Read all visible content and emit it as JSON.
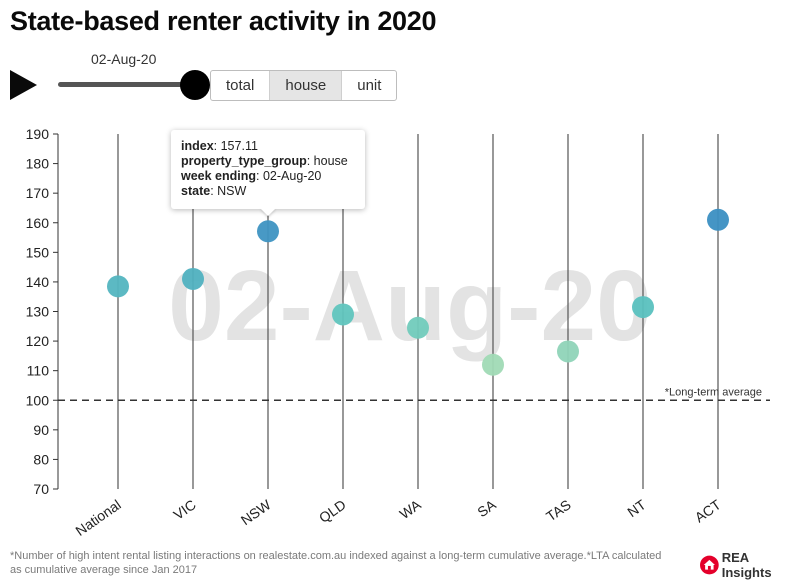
{
  "title": "State-based renter activity in 2020",
  "slider": {
    "current_label": "02-Aug-20",
    "progress": 1.0
  },
  "property_toggle": {
    "options": [
      "total",
      "house",
      "unit"
    ],
    "selected": "house"
  },
  "tooltip": {
    "rows": [
      {
        "key": "index",
        "value": "157.11"
      },
      {
        "key": "property_type_group",
        "value": "house"
      },
      {
        "key": "week ending",
        "value": "02-Aug-20"
      },
      {
        "key": "state",
        "value": "NSW"
      }
    ]
  },
  "chart_data": {
    "type": "scatter",
    "watermark": "02-Aug-20",
    "categories": [
      "National",
      "VIC",
      "NSW",
      "QLD",
      "WA",
      "SA",
      "TAS",
      "NT",
      "ACT"
    ],
    "values": [
      138.5,
      141.0,
      157.11,
      129.0,
      124.5,
      112.0,
      116.5,
      131.5,
      161.0
    ],
    "ylim": [
      70,
      190
    ],
    "yticks": [
      70,
      80,
      90,
      100,
      110,
      120,
      130,
      140,
      150,
      160,
      170,
      180,
      190
    ],
    "reference_line": {
      "value": 100,
      "label": "*Long-term average"
    },
    "color_scale": {
      "low": "#a8dcb4",
      "mid": "#5cc4bf",
      "high": "#3b8fc2"
    }
  },
  "footnote": "*Number of high intent rental listing interactions on realestate.com.au indexed against a long-term cumulative average.*LTA calculated as cumulative average since Jan 2017",
  "logo": {
    "text": "REA Insights",
    "color": "#e4002b"
  }
}
